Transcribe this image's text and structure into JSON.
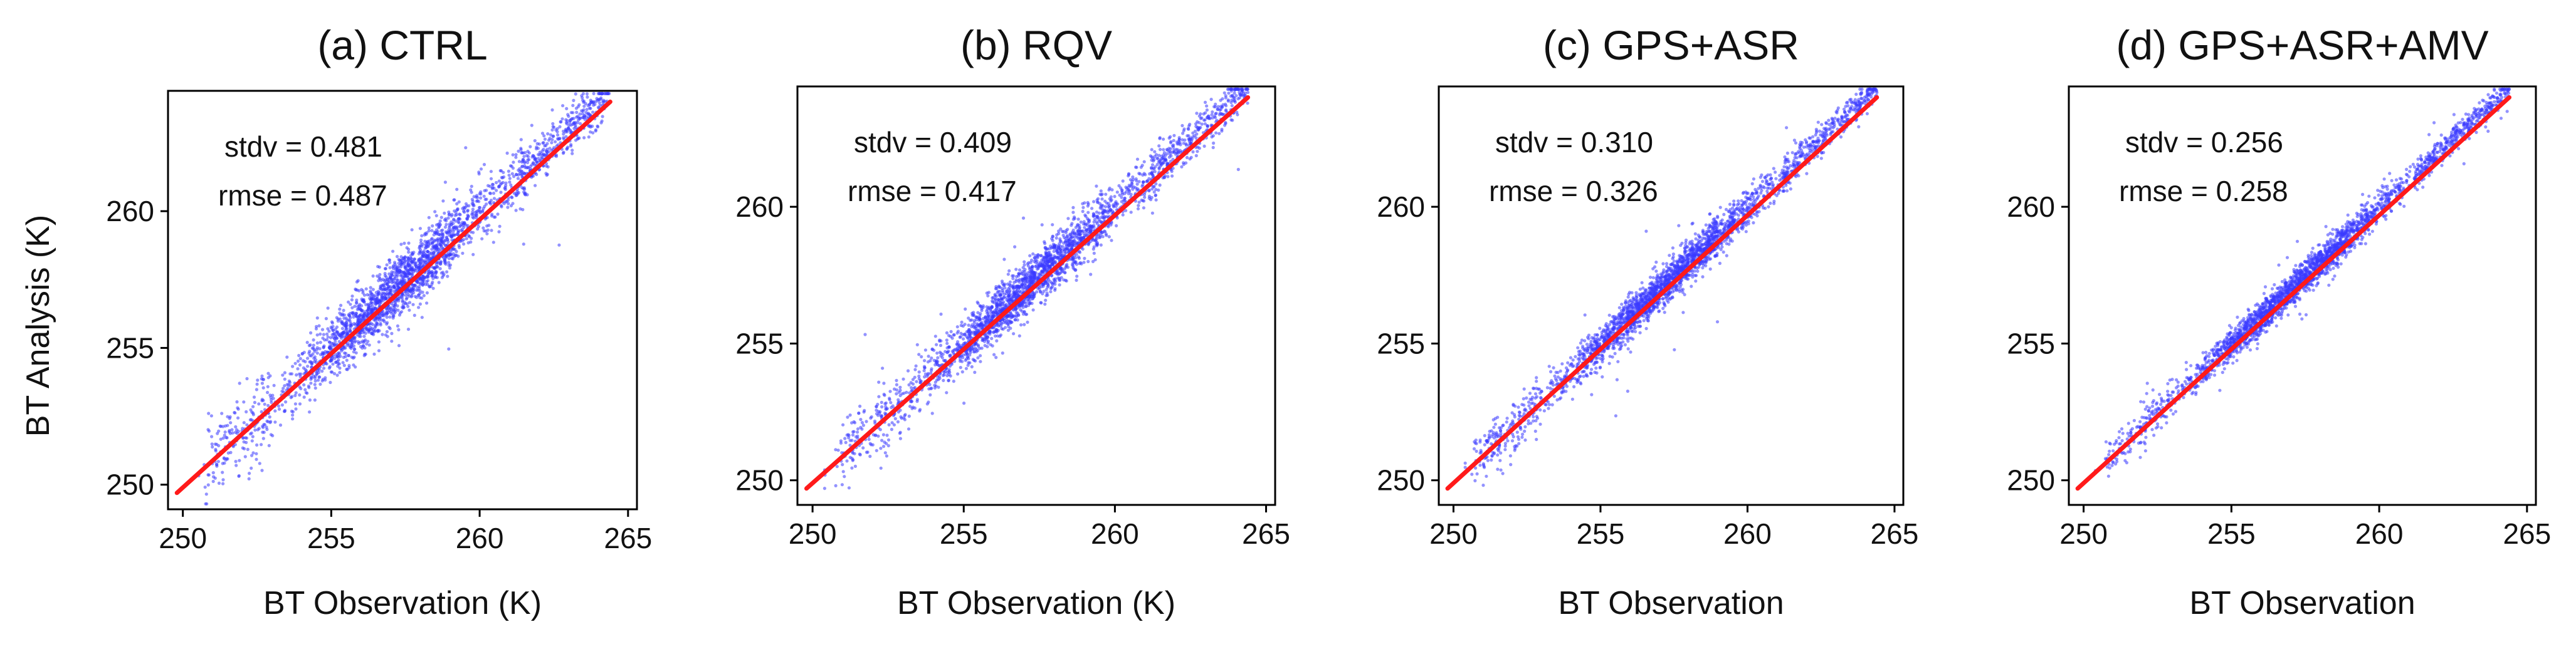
{
  "figure": {
    "y_axis_label": "BT Analysis  (K)"
  },
  "chart_data": [
    {
      "type": "scatter",
      "title": "(a) CTRL",
      "xlabel": "BT Observation (K)",
      "ylabel": "BT Analysis  (K)",
      "xlim": [
        249.5,
        265.3
      ],
      "ylim": [
        249.1,
        264.4
      ],
      "xticks": [
        250,
        255,
        260,
        265
      ],
      "yticks": [
        250,
        255,
        260
      ],
      "stats": {
        "stdv": "stdv = 0.481",
        "rmse": "rmse = 0.487"
      },
      "spread": 0.481,
      "regression_line": {
        "x": [
          249.8,
          264.4
        ],
        "y": [
          249.7,
          264.0
        ]
      },
      "point_color": "#3a3aff",
      "line_color": "#ff1a1a"
    },
    {
      "type": "scatter",
      "title": "(b) RQV",
      "xlabel": "BT Observation (K)",
      "ylabel": "",
      "xlim": [
        249.5,
        265.3
      ],
      "ylim": [
        249.1,
        264.4
      ],
      "xticks": [
        250,
        255,
        260,
        265
      ],
      "yticks": [
        250,
        255,
        260
      ],
      "stats": {
        "stdv": "stdv = 0.409",
        "rmse": "rmse = 0.417"
      },
      "spread": 0.409,
      "regression_line": {
        "x": [
          249.8,
          264.4
        ],
        "y": [
          249.7,
          264.0
        ]
      },
      "point_color": "#3a3aff",
      "line_color": "#ff1a1a"
    },
    {
      "type": "scatter",
      "title": "(c) GPS+ASR",
      "xlabel": "BT Observation",
      "ylabel": "",
      "xlim": [
        249.5,
        265.3
      ],
      "ylim": [
        249.1,
        264.4
      ],
      "xticks": [
        250,
        255,
        260,
        265
      ],
      "yticks": [
        250,
        255,
        260
      ],
      "stats": {
        "stdv": "stdv = 0.310",
        "rmse": "rmse = 0.326"
      },
      "spread": 0.31,
      "regression_line": {
        "x": [
          249.8,
          264.4
        ],
        "y": [
          249.7,
          264.0
        ]
      },
      "point_color": "#3a3aff",
      "line_color": "#ff1a1a"
    },
    {
      "type": "scatter",
      "title": "(d) GPS+ASR+AMV",
      "xlabel": "BT Observation",
      "ylabel": "",
      "xlim": [
        249.5,
        265.3
      ],
      "ylim": [
        249.1,
        264.4
      ],
      "xticks": [
        250,
        255,
        260,
        265
      ],
      "yticks": [
        250,
        255,
        260
      ],
      "stats": {
        "stdv": "stdv = 0.256",
        "rmse": "rmse = 0.258"
      },
      "spread": 0.256,
      "regression_line": {
        "x": [
          249.8,
          264.4
        ],
        "y": [
          249.7,
          264.0
        ]
      },
      "point_color": "#3a3aff",
      "line_color": "#ff1a1a"
    }
  ]
}
